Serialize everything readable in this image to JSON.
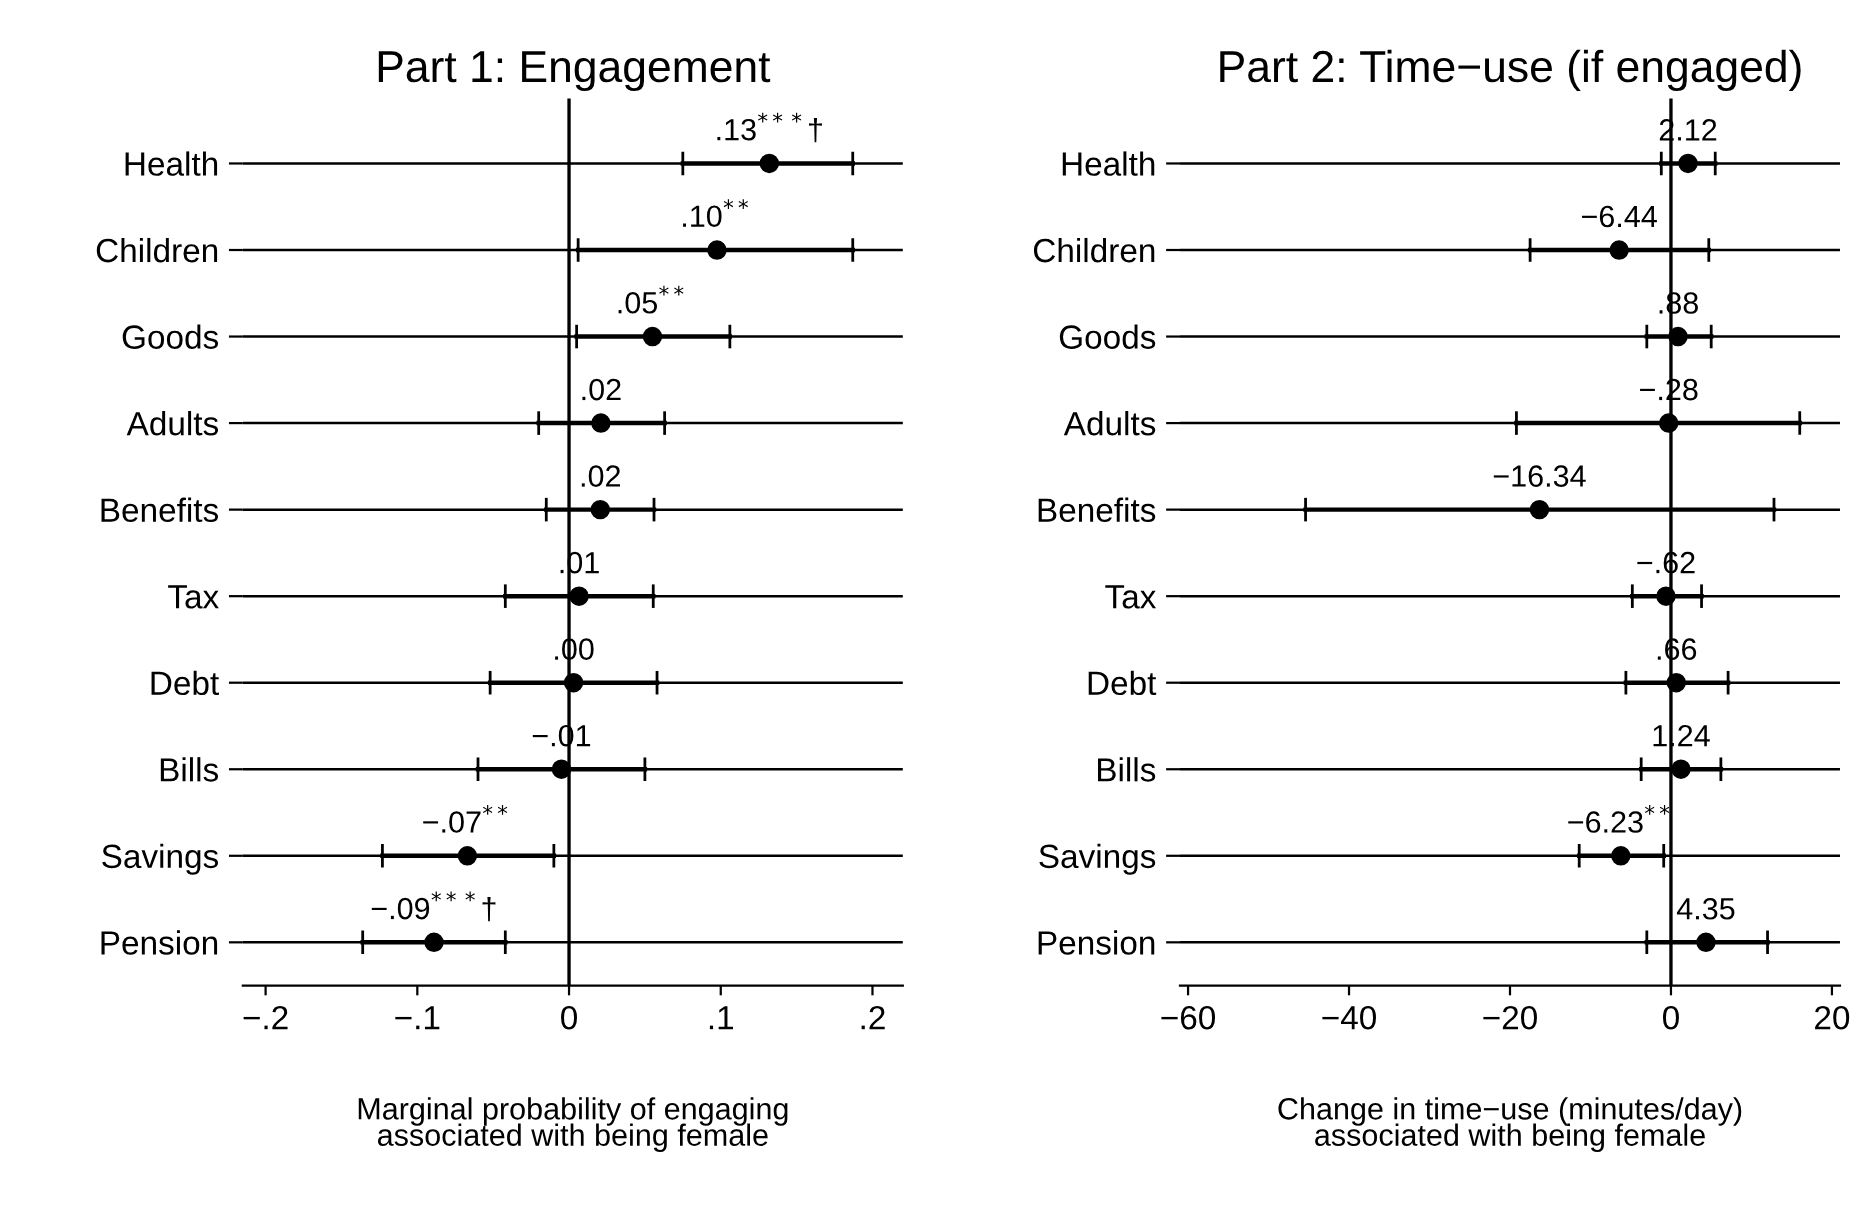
{
  "chart_data": [
    {
      "type": "scatter",
      "orientation": "horizontal",
      "title": "Part 1: Engagement",
      "xlabel": "Marginal probability of engaging\nassociated with being female",
      "categories": [
        "Health",
        "Children",
        "Goods",
        "Adults",
        "Benefits",
        "Tax",
        "Debt",
        "Bills",
        "Savings",
        "Pension"
      ],
      "values": [
        0.132,
        0.0975,
        0.055,
        0.021,
        0.0206,
        0.0066,
        0.003,
        -0.005,
        -0.067,
        -0.089
      ],
      "errors": [
        [
          0.075,
          0.187
        ],
        [
          0.006,
          0.187
        ],
        [
          0.005,
          0.106
        ],
        [
          -0.02,
          0.063
        ],
        [
          -0.015,
          0.056
        ],
        [
          -0.042,
          0.0555
        ],
        [
          -0.052,
          0.058
        ],
        [
          -0.06,
          0.05
        ],
        [
          -0.123,
          -0.01
        ],
        [
          -0.136,
          -0.042
        ]
      ],
      "value_labels": [
        ".13$^{***}$†",
        ".10$^{**}$",
        ".05$^{**}$",
        ".02",
        ".02",
        ".01",
        ".00",
        "−.01",
        "−.07$^{**}$",
        "−.09$^{***}$†"
      ],
      "color": "#000000",
      "marker": "circle",
      "grid": "y",
      "xlim": [
        -0.215,
        0.22
      ],
      "xticks": [
        {
          "value": -0.2,
          "label": "−.2"
        },
        {
          "value": -0.1,
          "label": "−.1"
        },
        0,
        {
          "value": 0.1,
          "label": ".1"
        },
        {
          "value": 0.2,
          "label": ".2"
        }
      ],
      "ref_lines": [
        {
          "axis": "x",
          "value": 0,
          "color": "#000000"
        }
      ]
    },
    {
      "type": "scatter",
      "orientation": "horizontal",
      "title": "Part 2: Time−use (if engaged)",
      "xlabel": "Change in time−use (minutes/day)\nassociated with being female",
      "categories": [
        "Health",
        "Children",
        "Goods",
        "Adults",
        "Benefits",
        "Tax",
        "Debt",
        "Bills",
        "Savings",
        "Pension"
      ],
      "values": [
        2.12,
        -6.44,
        0.88,
        -0.28,
        -16.34,
        -0.62,
        0.66,
        1.24,
        -6.23,
        4.35
      ],
      "errors": [
        [
          -1.2,
          5.5
        ],
        [
          -17.5,
          4.7
        ],
        [
          -3.0,
          5.0
        ],
        [
          -19.2,
          16
        ],
        [
          -45.4,
          12.8
        ],
        [
          -4.8,
          3.8
        ],
        [
          -5.6,
          7.1
        ],
        [
          -3.7,
          6.2
        ],
        [
          -11.4,
          -0.9
        ],
        [
          -3.0,
          12.0
        ]
      ],
      "value_labels": [
        "2.12",
        "−6.44",
        ".88",
        "−.28",
        "−16.34",
        "−.62",
        ".66",
        "1.24",
        "−6.23$^{**}$",
        "4.35"
      ],
      "color": "#000000",
      "marker": "circle",
      "grid": "y",
      "xlim": [
        -61,
        21
      ],
      "xticks": [
        {
          "value": -60,
          "label": "−60"
        },
        {
          "value": -40,
          "label": "−40"
        },
        {
          "value": -20,
          "label": "−20"
        },
        0,
        20
      ],
      "ref_lines": [
        {
          "axis": "x",
          "value": 0,
          "color": "#000000"
        }
      ]
    }
  ]
}
